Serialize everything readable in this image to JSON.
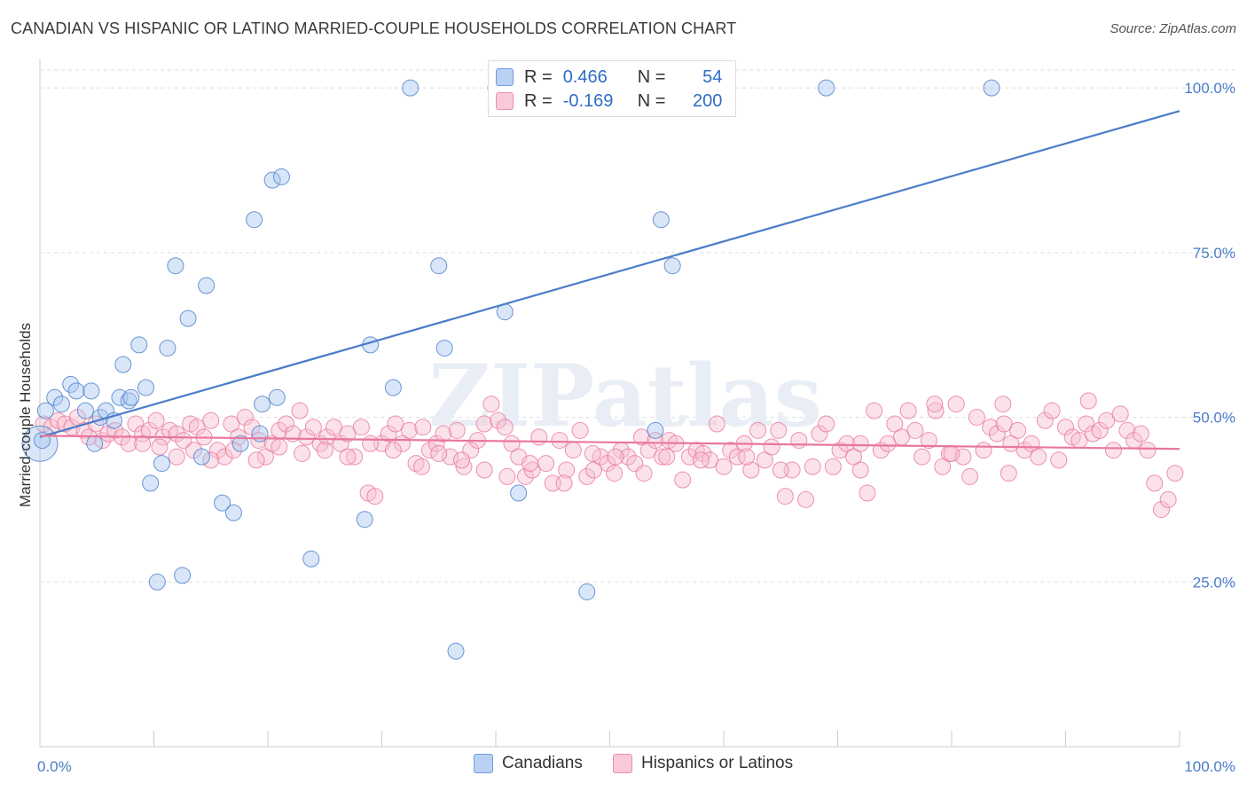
{
  "title": "CANADIAN VS HISPANIC OR LATINO MARRIED-COUPLE HOUSEHOLDS CORRELATION CHART",
  "source": "Source: ZipAtlas.com",
  "watermark": "ZIPatlas",
  "legend": {
    "rows": [
      {
        "r_label": "R =",
        "r_value": "0.466",
        "n_label": "N =",
        "n_value": "54",
        "color": "#9fc0ee"
      },
      {
        "r_label": "R =",
        "r_value": "-0.169",
        "n_label": "N =",
        "n_value": "200",
        "color": "#f5b5c8"
      }
    ]
  },
  "chart_data": {
    "type": "scatter",
    "title": "CANADIAN VS HISPANIC OR LATINO MARRIED-COUPLE HOUSEHOLDS CORRELATION CHART",
    "xlabel": "",
    "ylabel": "Married-couple Households",
    "xlim": [
      0,
      100
    ],
    "ylim": [
      0,
      105
    ],
    "x_tick_labels": [
      "0.0%",
      "100.0%"
    ],
    "y_ticks": [
      25,
      50,
      75,
      100
    ],
    "y_tick_labels": [
      "25.0%",
      "50.0%",
      "75.0%",
      "100.0%"
    ],
    "grid": true,
    "legend_position": "top-center",
    "series": [
      {
        "name": "Canadians",
        "color": "#4a7cc9",
        "fill": "#a9c7f0",
        "R": 0.466,
        "N": 54,
        "trend": {
          "x": [
            0,
            100
          ],
          "y": [
            47.0,
            96.5
          ]
        },
        "points": [
          [
            0.0,
            46.0
          ],
          [
            0.5,
            51.0
          ],
          [
            1.3,
            53.0
          ],
          [
            1.9,
            52.0
          ],
          [
            2.7,
            55.0
          ],
          [
            3.2,
            54.0
          ],
          [
            4.0,
            51.0
          ],
          [
            4.5,
            54.0
          ],
          [
            4.8,
            46.0
          ],
          [
            5.3,
            50.0
          ],
          [
            5.8,
            51.0
          ],
          [
            6.5,
            49.5
          ],
          [
            7.0,
            53.0
          ],
          [
            7.3,
            58.0
          ],
          [
            7.8,
            52.5
          ],
          [
            8.0,
            53.0
          ],
          [
            8.7,
            61.0
          ],
          [
            9.3,
            54.5
          ],
          [
            9.7,
            40.0
          ],
          [
            10.3,
            25.0
          ],
          [
            10.7,
            43.0
          ],
          [
            11.2,
            60.5
          ],
          [
            11.9,
            73.0
          ],
          [
            12.5,
            26.0
          ],
          [
            13.0,
            65.0
          ],
          [
            14.2,
            44.0
          ],
          [
            14.6,
            70.0
          ],
          [
            16.0,
            37.0
          ],
          [
            17.0,
            35.5
          ],
          [
            17.6,
            46.0
          ],
          [
            18.8,
            80.0
          ],
          [
            19.3,
            47.5
          ],
          [
            19.5,
            52.0
          ],
          [
            20.4,
            86.0
          ],
          [
            20.8,
            53.0
          ],
          [
            21.2,
            86.5
          ],
          [
            23.8,
            28.5
          ],
          [
            28.5,
            34.5
          ],
          [
            29.0,
            61.0
          ],
          [
            31.0,
            54.5
          ],
          [
            32.5,
            100.0
          ],
          [
            35.0,
            73.0
          ],
          [
            35.5,
            60.5
          ],
          [
            36.5,
            14.5
          ],
          [
            40.0,
            100.0
          ],
          [
            40.8,
            66.0
          ],
          [
            42.0,
            38.5
          ],
          [
            48.0,
            23.5
          ],
          [
            54.0,
            48.0
          ],
          [
            54.5,
            80.0
          ],
          [
            55.5,
            73.0
          ],
          [
            69.0,
            100.0
          ],
          [
            83.5,
            100.0
          ],
          [
            0.2,
            46.5
          ]
        ]
      },
      {
        "name": "Hispanics or Latinos",
        "color": "#e8779c",
        "fill": "#f7bfd0",
        "R": -0.169,
        "N": 200,
        "trend": {
          "x": [
            0,
            100
          ],
          "y": [
            47.2,
            45.2
          ]
        },
        "points": [
          [
            0.3,
            49.0
          ],
          [
            1.0,
            48.5
          ],
          [
            1.6,
            49.5
          ],
          [
            2.2,
            49.0
          ],
          [
            2.8,
            48.5
          ],
          [
            3.3,
            50.0
          ],
          [
            3.9,
            48.0
          ],
          [
            4.3,
            47.0
          ],
          [
            4.9,
            49.0
          ],
          [
            5.5,
            46.5
          ],
          [
            6.0,
            47.5
          ],
          [
            6.6,
            48.0
          ],
          [
            7.2,
            47.0
          ],
          [
            7.8,
            46.0
          ],
          [
            8.4,
            49.0
          ],
          [
            9.0,
            47.5
          ],
          [
            9.6,
            48.0
          ],
          [
            10.2,
            49.5
          ],
          [
            10.8,
            47.0
          ],
          [
            11.4,
            48.0
          ],
          [
            12.0,
            47.5
          ],
          [
            12.6,
            46.5
          ],
          [
            13.2,
            49.0
          ],
          [
            13.8,
            48.5
          ],
          [
            14.4,
            47.0
          ],
          [
            15.0,
            49.5
          ],
          [
            15.6,
            45.0
          ],
          [
            16.2,
            44.0
          ],
          [
            16.8,
            49.0
          ],
          [
            17.4,
            47.0
          ],
          [
            18.0,
            50.0
          ],
          [
            18.6,
            48.5
          ],
          [
            19.2,
            46.5
          ],
          [
            19.8,
            44.0
          ],
          [
            20.4,
            46.0
          ],
          [
            21.0,
            48.0
          ],
          [
            21.6,
            49.0
          ],
          [
            22.2,
            47.5
          ],
          [
            22.8,
            51.0
          ],
          [
            23.4,
            47.0
          ],
          [
            24.0,
            48.5
          ],
          [
            24.6,
            46.0
          ],
          [
            25.2,
            47.0
          ],
          [
            25.8,
            48.5
          ],
          [
            26.4,
            46.0
          ],
          [
            27.0,
            47.5
          ],
          [
            27.6,
            44.0
          ],
          [
            28.2,
            48.5
          ],
          [
            28.8,
            38.5
          ],
          [
            29.4,
            38.0
          ],
          [
            30.0,
            46.0
          ],
          [
            30.6,
            47.5
          ],
          [
            31.2,
            49.0
          ],
          [
            31.8,
            46.0
          ],
          [
            32.4,
            48.0
          ],
          [
            33.0,
            43.0
          ],
          [
            33.6,
            48.5
          ],
          [
            34.2,
            45.0
          ],
          [
            34.8,
            46.0
          ],
          [
            35.4,
            47.5
          ],
          [
            36.0,
            44.0
          ],
          [
            36.6,
            48.0
          ],
          [
            37.2,
            42.5
          ],
          [
            37.8,
            45.0
          ],
          [
            38.4,
            46.5
          ],
          [
            39.0,
            49.0
          ],
          [
            39.6,
            52.0
          ],
          [
            40.2,
            49.5
          ],
          [
            40.8,
            48.5
          ],
          [
            41.4,
            46.0
          ],
          [
            42.0,
            44.0
          ],
          [
            42.6,
            41.0
          ],
          [
            43.2,
            42.0
          ],
          [
            43.8,
            47.0
          ],
          [
            44.4,
            43.0
          ],
          [
            45.0,
            40.0
          ],
          [
            45.6,
            46.5
          ],
          [
            46.2,
            42.0
          ],
          [
            46.8,
            45.0
          ],
          [
            47.4,
            48.0
          ],
          [
            48.0,
            41.0
          ],
          [
            48.6,
            42.0
          ],
          [
            49.2,
            44.0
          ],
          [
            49.8,
            43.0
          ],
          [
            50.4,
            41.5
          ],
          [
            51.0,
            45.0
          ],
          [
            51.6,
            44.0
          ],
          [
            52.2,
            43.0
          ],
          [
            52.8,
            47.0
          ],
          [
            53.4,
            45.0
          ],
          [
            54.0,
            46.5
          ],
          [
            54.6,
            44.0
          ],
          [
            55.2,
            46.5
          ],
          [
            55.8,
            46.0
          ],
          [
            56.4,
            40.5
          ],
          [
            57.0,
            44.0
          ],
          [
            57.6,
            45.0
          ],
          [
            58.2,
            44.5
          ],
          [
            58.8,
            43.5
          ],
          [
            59.4,
            49.0
          ],
          [
            60.0,
            42.5
          ],
          [
            60.6,
            45.0
          ],
          [
            61.2,
            44.0
          ],
          [
            61.8,
            46.0
          ],
          [
            62.4,
            42.0
          ],
          [
            63.0,
            48.0
          ],
          [
            63.6,
            43.5
          ],
          [
            64.2,
            45.5
          ],
          [
            64.8,
            48.0
          ],
          [
            65.4,
            38.0
          ],
          [
            66.0,
            42.0
          ],
          [
            66.6,
            46.5
          ],
          [
            67.2,
            37.5
          ],
          [
            67.8,
            42.5
          ],
          [
            68.4,
            47.5
          ],
          [
            69.0,
            49.0
          ],
          [
            69.6,
            42.5
          ],
          [
            70.2,
            45.0
          ],
          [
            70.8,
            46.0
          ],
          [
            71.4,
            44.0
          ],
          [
            72.0,
            46.0
          ],
          [
            72.6,
            38.5
          ],
          [
            73.2,
            51.0
          ],
          [
            73.8,
            45.0
          ],
          [
            74.4,
            46.0
          ],
          [
            75.0,
            49.0
          ],
          [
            75.6,
            47.0
          ],
          [
            76.2,
            51.0
          ],
          [
            76.8,
            48.0
          ],
          [
            77.4,
            44.0
          ],
          [
            78.0,
            46.5
          ],
          [
            78.6,
            51.0
          ],
          [
            79.2,
            42.5
          ],
          [
            79.8,
            44.5
          ],
          [
            80.4,
            52.0
          ],
          [
            81.0,
            44.0
          ],
          [
            81.6,
            41.0
          ],
          [
            82.2,
            50.0
          ],
          [
            82.8,
            45.0
          ],
          [
            83.4,
            48.5
          ],
          [
            84.0,
            47.5
          ],
          [
            84.6,
            49.0
          ],
          [
            85.2,
            46.0
          ],
          [
            85.8,
            48.0
          ],
          [
            86.4,
            45.0
          ],
          [
            87.0,
            46.0
          ],
          [
            87.6,
            44.0
          ],
          [
            88.2,
            49.5
          ],
          [
            88.8,
            51.0
          ],
          [
            89.4,
            43.5
          ],
          [
            90.0,
            48.5
          ],
          [
            90.6,
            47.0
          ],
          [
            91.2,
            46.5
          ],
          [
            91.8,
            49.0
          ],
          [
            92.4,
            47.5
          ],
          [
            93.0,
            48.0
          ],
          [
            93.6,
            49.5
          ],
          [
            94.2,
            45.0
          ],
          [
            94.8,
            50.5
          ],
          [
            95.4,
            48.0
          ],
          [
            96.0,
            46.5
          ],
          [
            96.6,
            47.5
          ],
          [
            97.2,
            45.0
          ],
          [
            97.8,
            40.0
          ],
          [
            98.4,
            36.0
          ],
          [
            99.0,
            37.5
          ],
          [
            99.6,
            41.5
          ],
          [
            92.0,
            52.5
          ],
          [
            84.5,
            52.0
          ],
          [
            78.5,
            52.0
          ],
          [
            85.0,
            41.5
          ],
          [
            80.0,
            44.5
          ],
          [
            72.0,
            42.0
          ],
          [
            65.0,
            42.0
          ],
          [
            62.0,
            44.0
          ],
          [
            58.0,
            43.5
          ],
          [
            55.0,
            44.0
          ],
          [
            53.0,
            41.5
          ],
          [
            50.5,
            44.0
          ],
          [
            48.5,
            44.5
          ],
          [
            46.0,
            40.0
          ],
          [
            43.0,
            43.0
          ],
          [
            41.0,
            41.0
          ],
          [
            39.0,
            42.0
          ],
          [
            37.0,
            43.5
          ],
          [
            35.0,
            44.5
          ],
          [
            33.5,
            42.5
          ],
          [
            31.0,
            45.0
          ],
          [
            29.0,
            46.0
          ],
          [
            27.0,
            44.0
          ],
          [
            25.0,
            45.0
          ],
          [
            23.0,
            44.5
          ],
          [
            21.0,
            45.5
          ],
          [
            19.0,
            43.5
          ],
          [
            17.0,
            45.0
          ],
          [
            15.0,
            43.5
          ],
          [
            13.5,
            45.0
          ],
          [
            12.0,
            44.0
          ],
          [
            10.5,
            45.5
          ],
          [
            9.0,
            46.0
          ]
        ]
      }
    ]
  }
}
